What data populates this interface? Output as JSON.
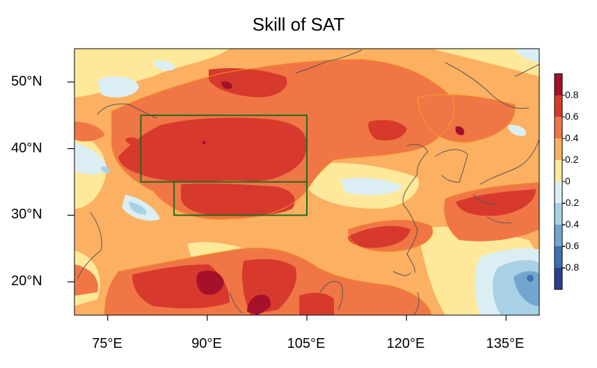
{
  "title": "Skill of SAT",
  "lat_labels": [
    "50°N",
    "40°N",
    "30°N",
    "20°N"
  ],
  "lon_labels": [
    "75°E",
    "90°E",
    "105°E",
    "120°E",
    "135°E"
  ],
  "colorbar": {
    "labels": [
      "0.8",
      "0.6",
      "0.4",
      "0.2",
      "0",
      "-0.2",
      "-0.4",
      "-0.6",
      "-0.8"
    ],
    "colors": [
      "#2c3f96",
      "#3d6fb3",
      "#72a6cf",
      "#a8d1e6",
      "#dbeef4",
      "#fee89a",
      "#fcb062",
      "#f07646",
      "#d73a2c",
      "#a5102a"
    ]
  },
  "map_extent": {
    "lon": [
      70,
      140
    ],
    "lat": [
      15,
      55
    ]
  },
  "regions": [
    {
      "name": "box-north",
      "lon": [
        80,
        105
      ],
      "lat": [
        35,
        45
      ]
    },
    {
      "name": "box-south",
      "lon": [
        85,
        105
      ],
      "lat": [
        30,
        35
      ]
    }
  ]
}
